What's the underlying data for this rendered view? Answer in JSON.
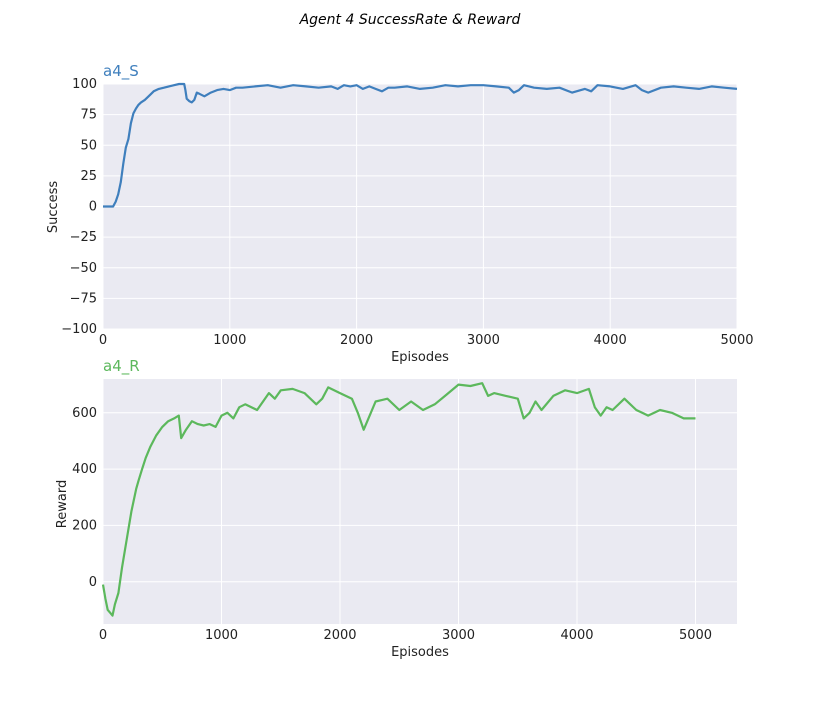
{
  "figure": {
    "suptitle": "Agent 4 SuccessRate & Reward"
  },
  "chart_data": [
    {
      "type": "line",
      "title": "a4_S",
      "xlabel": "Episodes",
      "ylabel": "Success",
      "xlim": [
        0,
        5000
      ],
      "ylim": [
        -100,
        100
      ],
      "xticks": [
        0,
        1000,
        2000,
        3000,
        4000,
        5000
      ],
      "yticks": [
        -100,
        -75,
        -50,
        -25,
        0,
        25,
        50,
        75,
        100
      ],
      "xtick_labels": [
        "0",
        "1000",
        "2000",
        "3000",
        "4000",
        "5000"
      ],
      "ytick_labels": [
        "−100",
        "−75",
        "−50",
        "−25",
        "0",
        "25",
        "50",
        "75",
        "100"
      ],
      "grid": true,
      "color": "#3f7fbd",
      "series": [
        {
          "x": [
            0,
            60,
            80,
            100,
            120,
            140,
            160,
            180,
            200,
            220,
            240,
            260,
            280,
            300,
            330,
            360,
            400,
            440,
            480,
            520,
            560,
            600,
            640,
            650,
            660,
            680,
            700,
            720,
            740,
            760,
            800,
            850,
            900,
            950,
            1000,
            1050,
            1100,
            1200,
            1300,
            1400,
            1500,
            1600,
            1700,
            1800,
            1850,
            1900,
            1950,
            2000,
            2050,
            2100,
            2150,
            2200,
            2250,
            2300,
            2400,
            2500,
            2600,
            2700,
            2800,
            2900,
            3000,
            3100,
            3200,
            3240,
            3280,
            3320,
            3400,
            3500,
            3600,
            3700,
            3800,
            3850,
            3900,
            4000,
            4100,
            4200,
            4250,
            4300,
            4400,
            4500,
            4600,
            4700,
            4800,
            4900,
            5000
          ],
          "y": [
            0,
            0,
            0,
            4,
            10,
            20,
            35,
            48,
            55,
            68,
            76,
            80,
            83,
            85,
            87,
            90,
            94,
            96,
            97,
            98,
            99,
            100,
            100,
            95,
            88,
            86,
            85,
            87,
            93,
            92,
            90,
            93,
            95,
            96,
            95,
            97,
            97,
            98,
            99,
            97,
            99,
            98,
            97,
            98,
            96,
            99,
            98,
            99,
            96,
            98,
            96,
            94,
            97,
            97,
            98,
            96,
            97,
            99,
            98,
            99,
            99,
            98,
            97,
            93,
            95,
            99,
            97,
            96,
            97,
            93,
            96,
            94,
            99,
            98,
            96,
            99,
            95,
            93,
            97,
            98,
            97,
            96,
            98,
            97,
            96
          ]
        }
      ]
    },
    {
      "type": "line",
      "title": "a4_R",
      "xlabel": "Episodes",
      "ylabel": "Reward",
      "xlim": [
        0,
        5350
      ],
      "ylim": [
        -150,
        720
      ],
      "xticks": [
        0,
        1000,
        2000,
        3000,
        4000,
        5000
      ],
      "yticks": [
        0,
        200,
        400,
        600
      ],
      "xtick_labels": [
        "0",
        "1000",
        "2000",
        "3000",
        "4000",
        "5000"
      ],
      "ytick_labels": [
        "0",
        "200",
        "400",
        "600"
      ],
      "grid": true,
      "color": "#5cb85c",
      "series": [
        {
          "x": [
            0,
            20,
            40,
            60,
            80,
            100,
            130,
            160,
            200,
            240,
            280,
            300,
            330,
            360,
            400,
            450,
            500,
            550,
            600,
            640,
            660,
            700,
            750,
            800,
            850,
            900,
            950,
            1000,
            1050,
            1100,
            1150,
            1200,
            1300,
            1400,
            1450,
            1500,
            1600,
            1700,
            1800,
            1850,
            1900,
            2000,
            2100,
            2150,
            2200,
            2230,
            2300,
            2400,
            2500,
            2600,
            2700,
            2800,
            2900,
            3000,
            3100,
            3200,
            3250,
            3300,
            3400,
            3500,
            3550,
            3600,
            3650,
            3700,
            3800,
            3900,
            4000,
            4100,
            4150,
            4200,
            4250,
            4300,
            4400,
            4450,
            4500,
            4550,
            4600,
            4700,
            4800,
            4900,
            5000
          ],
          "y": [
            -10,
            -60,
            -100,
            -110,
            -120,
            -80,
            -40,
            50,
            150,
            250,
            330,
            360,
            400,
            440,
            480,
            520,
            550,
            570,
            580,
            590,
            510,
            540,
            570,
            560,
            555,
            560,
            550,
            590,
            600,
            580,
            620,
            630,
            610,
            670,
            650,
            680,
            685,
            670,
            630,
            650,
            690,
            670,
            650,
            600,
            540,
            570,
            640,
            650,
            610,
            640,
            610,
            630,
            665,
            700,
            695,
            705,
            660,
            670,
            660,
            650,
            580,
            600,
            640,
            610,
            660,
            680,
            670,
            685,
            620,
            590,
            620,
            610,
            650,
            630,
            610,
            600,
            590,
            610,
            600,
            580,
            580
          ]
        }
      ]
    }
  ]
}
